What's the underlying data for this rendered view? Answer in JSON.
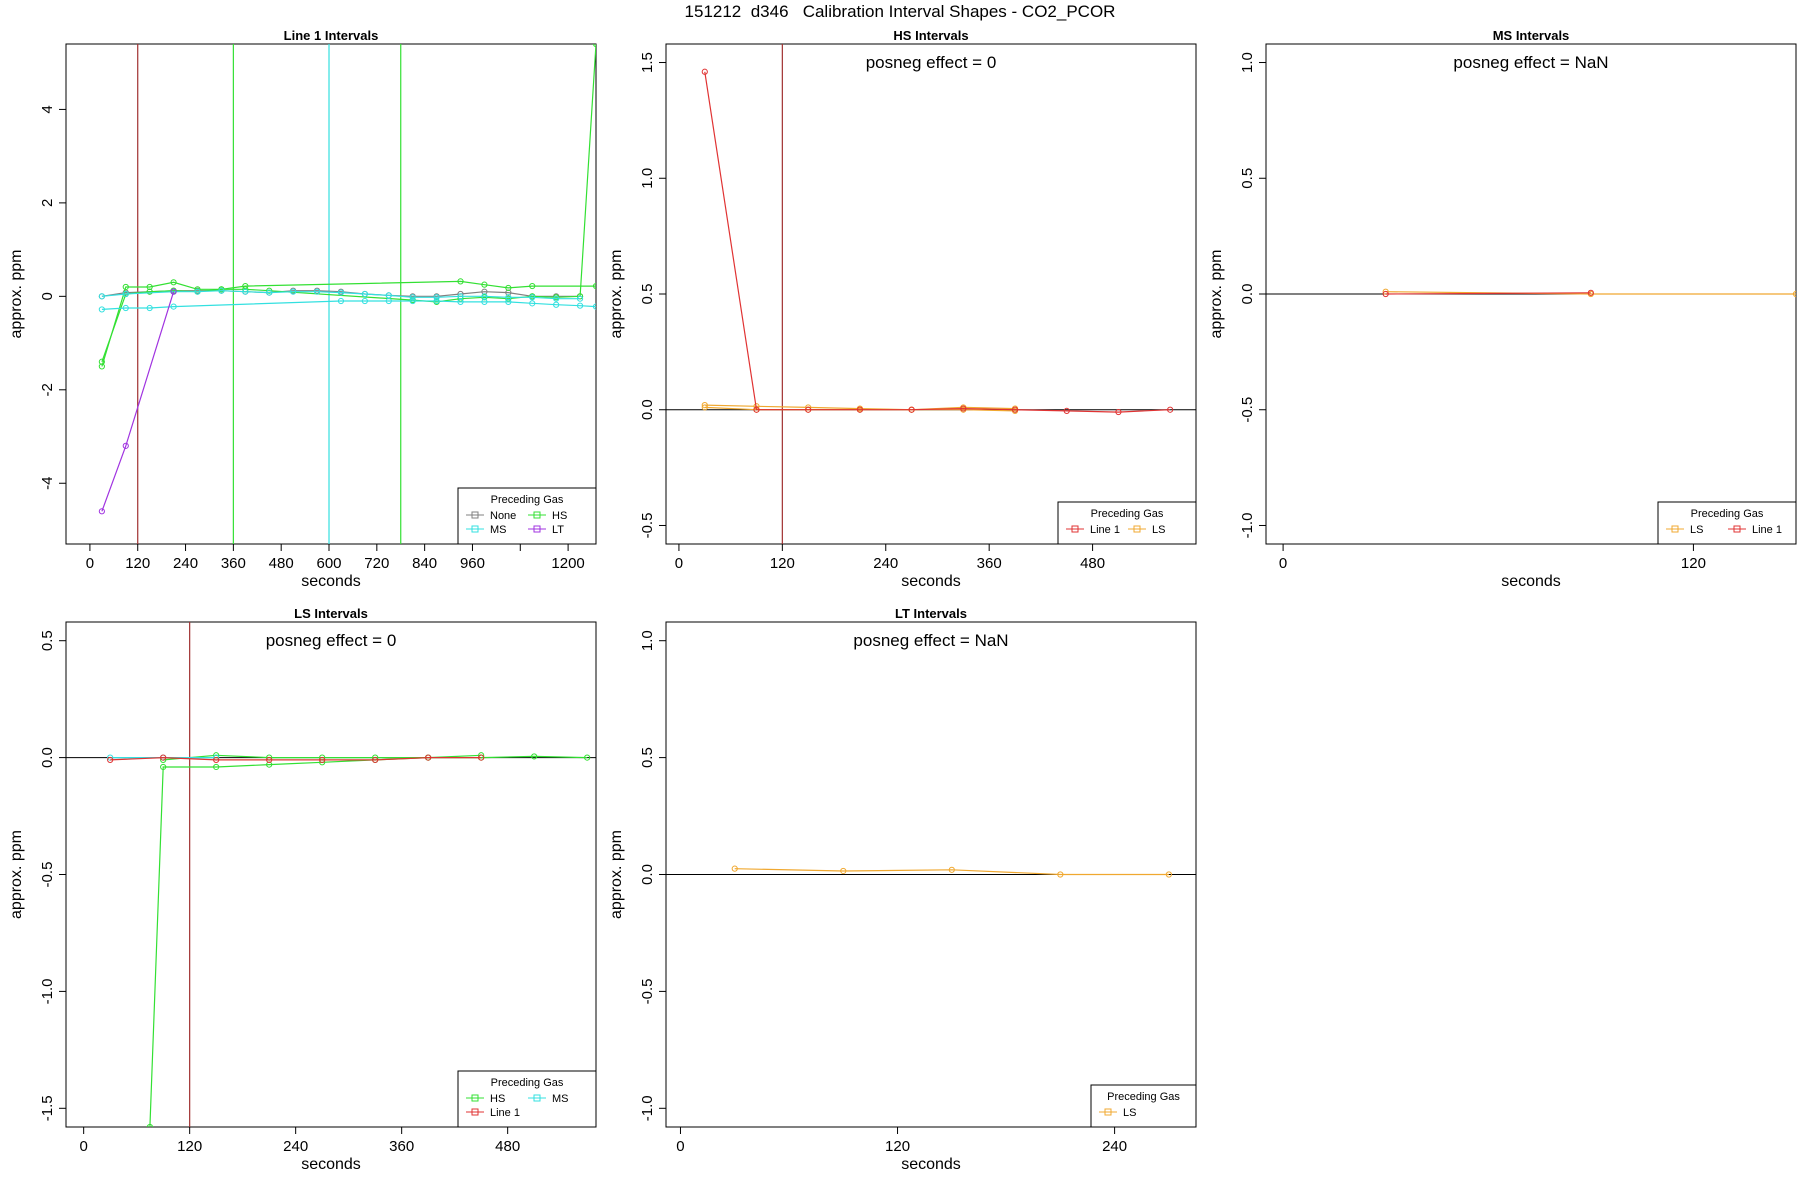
{
  "main_title": "151212  d346   Calibration Interval Shapes - CO2_PCOR",
  "colors": {
    "None": "#808080",
    "HS": "#33e033",
    "MS": "#33e0e0",
    "LT": "#a033e0",
    "Line 1": "#e03333",
    "LS": "#f0a830",
    "zero_line": "#000000",
    "vline_red": "#a03030"
  },
  "chart_data": [
    {
      "type": "line",
      "title": "Line 1 Intervals",
      "xlabel": "seconds",
      "ylabel": "approx. ppm",
      "xlim": [
        -60,
        1270
      ],
      "ylim": [
        -5.3,
        5.4
      ],
      "xticks": [
        0,
        120,
        240,
        360,
        480,
        600,
        720,
        840,
        960,
        1080,
        1200
      ],
      "xticklabels": [
        "0",
        "120",
        "240",
        "360",
        "480",
        "600",
        "720",
        "840",
        "960",
        "",
        "1200"
      ],
      "yticks": [
        -4,
        -2,
        0,
        2,
        4
      ],
      "yticklabels": [
        "-4",
        "-2",
        "0",
        "2",
        "4"
      ],
      "zero_line": false,
      "vlines": [
        {
          "x": 120,
          "color": "#a03030"
        },
        {
          "x": 360,
          "color": "#33e033"
        },
        {
          "x": 600,
          "color": "#33e0e0"
        },
        {
          "x": 780,
          "color": "#33e033"
        }
      ],
      "legend": {
        "title": "Preceding Gas",
        "columns": 2,
        "position": "bottom-right",
        "entries": [
          "None",
          "HS",
          "MS",
          "LT"
        ]
      },
      "series": [
        {
          "name": "None",
          "color": "#808080",
          "x": [
            30,
            90,
            150,
            210,
            270,
            330,
            390,
            450,
            510,
            570,
            630,
            690,
            750,
            810,
            870,
            930,
            990,
            1050,
            1110,
            1170,
            1230
          ],
          "y": [
            0.0,
            0.08,
            0.1,
            0.12,
            0.12,
            0.12,
            0.1,
            0.08,
            0.12,
            0.12,
            0.1,
            0.05,
            0.02,
            0.0,
            0.0,
            0.05,
            0.1,
            0.08,
            0.0,
            0.0,
            0.0
          ]
        },
        {
          "name": "HS",
          "color": "#33e033",
          "x": [
            30,
            90,
            150,
            210,
            270,
            330,
            390,
            930,
            990,
            1050,
            1110,
            1270
          ],
          "y": [
            -1.5,
            0.2,
            0.2,
            0.3,
            0.15,
            0.15,
            0.22,
            0.32,
            0.25,
            0.18,
            0.22,
            0.22
          ]
        },
        {
          "name": "HS",
          "color": "#33e033",
          "x": [
            30,
            90,
            150,
            210,
            270,
            330,
            390,
            450,
            810,
            870,
            930,
            990,
            1050,
            1110,
            1170,
            1230,
            1270
          ],
          "y": [
            -1.4,
            0.05,
            0.1,
            0.12,
            0.1,
            0.15,
            0.15,
            0.12,
            -0.08,
            -0.12,
            -0.05,
            -0.02,
            -0.05,
            0.0,
            -0.02,
            0.0,
            5.4
          ]
        },
        {
          "name": "MS",
          "color": "#33e0e0",
          "x": [
            30,
            90,
            150,
            210,
            630,
            690,
            750,
            810,
            870,
            930,
            990,
            1050,
            1110,
            1170,
            1230,
            1270
          ],
          "y": [
            -0.28,
            -0.25,
            -0.25,
            -0.22,
            -0.1,
            -0.1,
            -0.1,
            -0.1,
            -0.1,
            -0.12,
            -0.12,
            -0.12,
            -0.15,
            -0.18,
            -0.2,
            -0.22
          ]
        },
        {
          "name": "MS",
          "color": "#33e0e0",
          "x": [
            30,
            90,
            210,
            270,
            330,
            390,
            450,
            510,
            570,
            630,
            690,
            750,
            810,
            870,
            930,
            990,
            1050,
            1110,
            1170,
            1230
          ],
          "y": [
            0.0,
            0.05,
            0.1,
            0.1,
            0.12,
            0.1,
            0.08,
            0.1,
            0.1,
            0.08,
            0.05,
            0.02,
            -0.02,
            -0.02,
            0.0,
            0.0,
            -0.02,
            -0.02,
            -0.05,
            -0.05
          ]
        },
        {
          "name": "LT",
          "color": "#a033e0",
          "x": [
            30,
            90,
            210
          ],
          "y": [
            -4.6,
            -3.2,
            0.1
          ]
        }
      ]
    },
    {
      "type": "line",
      "title": "HS Intervals",
      "annotation": "posneg effect = 0",
      "xlabel": "seconds",
      "ylabel": "approx. ppm",
      "xlim": [
        -15,
        600
      ],
      "ylim": [
        -0.58,
        1.58
      ],
      "xticks": [
        0,
        120,
        240,
        360,
        480
      ],
      "xticklabels": [
        "0",
        "120",
        "240",
        "360",
        "480"
      ],
      "yticks": [
        -0.5,
        0.0,
        0.5,
        1.0,
        1.5
      ],
      "yticklabels": [
        "-0.5",
        "0.0",
        "0.5",
        "1.0",
        "1.5"
      ],
      "zero_line": true,
      "vlines": [
        {
          "x": 120,
          "color": "#a03030"
        }
      ],
      "legend": {
        "title": "Preceding Gas",
        "columns": 2,
        "position": "bottom-right",
        "entries": [
          "Line 1",
          "LS"
        ]
      },
      "series": [
        {
          "name": "LS",
          "color": "#f0a830",
          "x": [
            30,
            90,
            150,
            210,
            270,
            330,
            390
          ],
          "y": [
            0.02,
            0.015,
            0.01,
            0.005,
            0.0,
            0.01,
            0.005
          ]
        },
        {
          "name": "LS",
          "color": "#f0a830",
          "x": [
            30,
            90,
            150,
            210,
            270,
            330,
            390
          ],
          "y": [
            0.01,
            0.0,
            0.0,
            0.0,
            0.0,
            0.0,
            -0.005
          ]
        },
        {
          "name": "Line 1",
          "color": "#e03333",
          "x": [
            30,
            90,
            150,
            210,
            270,
            330,
            390,
            450,
            510,
            570
          ],
          "y": [
            1.46,
            0.0,
            0.0,
            0.0,
            0.0,
            0.005,
            0.0,
            -0.005,
            -0.01,
            0.0
          ]
        }
      ]
    },
    {
      "type": "line",
      "title": "MS Intervals",
      "annotation": "posneg effect = NaN",
      "xlabel": "seconds",
      "ylabel": "approx. ppm",
      "xlim": [
        -5,
        150
      ],
      "ylim": [
        -1.08,
        1.08
      ],
      "xticks": [
        0,
        120
      ],
      "xticklabels": [
        "0",
        "120"
      ],
      "yticks": [
        -1.0,
        -0.5,
        0.0,
        0.5,
        1.0
      ],
      "yticklabels": [
        "-1.0",
        "-0.5",
        "0.0",
        "0.5",
        "1.0"
      ],
      "zero_line": true,
      "vlines": [],
      "legend": {
        "title": "Preceding Gas",
        "columns": 2,
        "position": "bottom-right",
        "entries": [
          "LS",
          "Line 1"
        ]
      },
      "series": [
        {
          "name": "LS",
          "color": "#f0a830",
          "x": [
            30,
            90,
            150
          ],
          "y": [
            0.01,
            0.0,
            0.0
          ]
        },
        {
          "name": "Line 1",
          "color": "#e03333",
          "x": [
            30,
            90
          ],
          "y": [
            0.0,
            0.005
          ]
        }
      ]
    },
    {
      "type": "line",
      "title": "LS Intervals",
      "annotation": "posneg effect = 0",
      "xlabel": "seconds",
      "ylabel": "approx. ppm",
      "xlim": [
        -20,
        580
      ],
      "ylim": [
        -1.58,
        0.58
      ],
      "xticks": [
        0,
        120,
        240,
        360,
        480
      ],
      "xticklabels": [
        "0",
        "120",
        "240",
        "360",
        "480"
      ],
      "yticks": [
        -1.5,
        -1.0,
        -0.5,
        0.0,
        0.5
      ],
      "yticklabels": [
        "-1.5",
        "-1.0",
        "-0.5",
        "0.0",
        "0.5"
      ],
      "zero_line": true,
      "vlines": [
        {
          "x": 120,
          "color": "#a03030"
        }
      ],
      "legend": {
        "title": "Preceding Gas",
        "columns": 2,
        "position": "bottom-right",
        "entries": [
          "HS",
          "MS",
          "Line 1"
        ]
      },
      "series": [
        {
          "name": "HS",
          "color": "#33e033",
          "x": [
            75,
            90,
            150,
            210,
            270,
            330,
            390,
            450,
            510,
            570
          ],
          "y": [
            -1.58,
            -0.04,
            -0.04,
            -0.03,
            -0.02,
            -0.01,
            0.0,
            0.0,
            0.005,
            0.0
          ]
        },
        {
          "name": "HS",
          "color": "#33e033",
          "x": [
            90,
            150,
            210,
            270,
            330,
            390,
            450
          ],
          "y": [
            -0.01,
            0.01,
            0.0,
            0.0,
            0.0,
            0.0,
            0.01
          ]
        },
        {
          "name": "MS",
          "color": "#33e0e0",
          "x": [
            30,
            90,
            150
          ],
          "y": [
            0.0,
            0.0,
            0.0
          ]
        },
        {
          "name": "Line 1",
          "color": "#e03333",
          "x": [
            30,
            90,
            150,
            210,
            270,
            330,
            390,
            450
          ],
          "y": [
            -0.01,
            0.0,
            -0.01,
            -0.01,
            -0.01,
            -0.01,
            0.0,
            0.0
          ]
        }
      ]
    },
    {
      "type": "line",
      "title": "LT Intervals",
      "annotation": "posneg effect = NaN",
      "xlabel": "seconds",
      "ylabel": "approx. ppm",
      "xlim": [
        -8,
        285
      ],
      "ylim": [
        -1.08,
        1.08
      ],
      "xticks": [
        0,
        120,
        240
      ],
      "xticklabels": [
        "0",
        "120",
        "240"
      ],
      "yticks": [
        -1.0,
        -0.5,
        0.0,
        0.5,
        1.0
      ],
      "yticklabels": [
        "-1.0",
        "-0.5",
        "0.0",
        "0.5",
        "1.0"
      ],
      "zero_line": true,
      "vlines": [],
      "legend": {
        "title": "Preceding Gas",
        "columns": 1,
        "position": "bottom-right",
        "entries": [
          "LS"
        ]
      },
      "series": [
        {
          "name": "LS",
          "color": "#f0a830",
          "x": [
            30,
            90,
            150,
            210,
            270
          ],
          "y": [
            0.025,
            0.015,
            0.02,
            0.0,
            0.0
          ]
        }
      ]
    }
  ]
}
